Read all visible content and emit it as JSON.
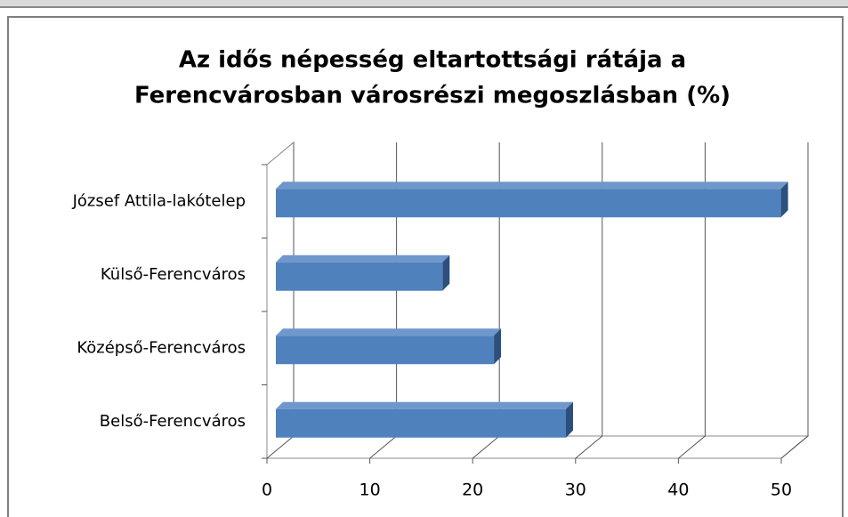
{
  "chart_data": {
    "type": "bar3d",
    "title": [
      "Az idős népesség eltartottsági rátája a",
      "Ferencvárosban városrészi megoszlásban (%)"
    ],
    "categories": [
      "József Attila-lakótelep",
      "Külső-Ferencváros",
      "Középső-Ferencváros",
      "Belső-Ferencváros"
    ],
    "values": [
      49.1,
      16.2,
      21.2,
      28.2
    ],
    "color": "#4f81bd",
    "xlim": [
      0,
      50
    ],
    "xticks": [
      0,
      10,
      20,
      30,
      40,
      50
    ],
    "grid": true
  }
}
